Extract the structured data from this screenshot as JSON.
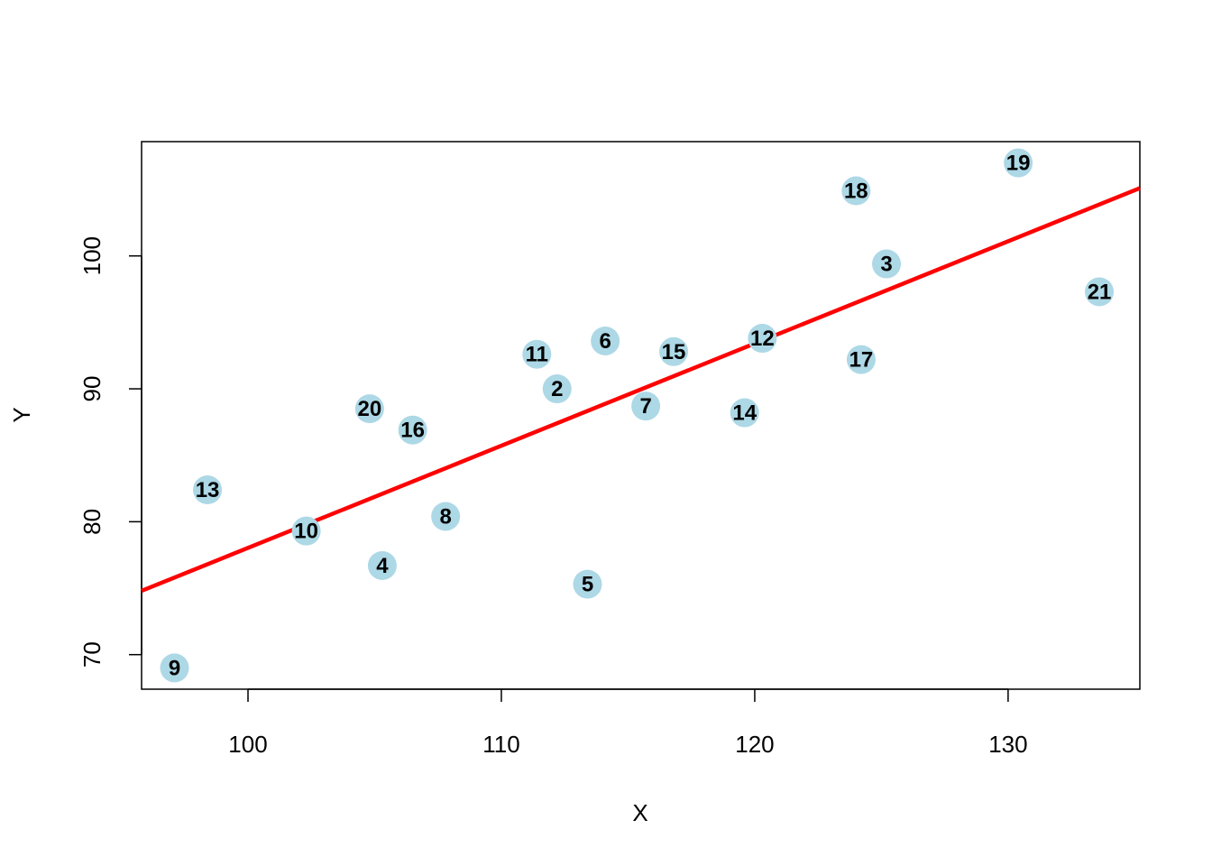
{
  "chart_data": {
    "type": "scatter",
    "title": "",
    "xlabel": "X",
    "ylabel": "Y",
    "xlim": [
      95.8,
      135.2
    ],
    "ylim": [
      67.4,
      108.6
    ],
    "x_ticks": [
      100,
      110,
      120,
      130
    ],
    "y_ticks": [
      70,
      80,
      90,
      100
    ],
    "grid": false,
    "legend": "none",
    "point_color": "#add8e6",
    "line_color": "#ff0000",
    "points": [
      {
        "label": "2",
        "x": 112.2,
        "y": 90.0
      },
      {
        "label": "3",
        "x": 125.2,
        "y": 99.4
      },
      {
        "label": "4",
        "x": 105.3,
        "y": 76.7
      },
      {
        "label": "5",
        "x": 113.4,
        "y": 75.3
      },
      {
        "label": "6",
        "x": 114.1,
        "y": 93.6
      },
      {
        "label": "7",
        "x": 115.7,
        "y": 88.7
      },
      {
        "label": "8",
        "x": 107.8,
        "y": 80.4
      },
      {
        "label": "9",
        "x": 97.1,
        "y": 69.0
      },
      {
        "label": "10",
        "x": 102.3,
        "y": 79.3
      },
      {
        "label": "11",
        "x": 111.4,
        "y": 92.6
      },
      {
        "label": "12",
        "x": 120.3,
        "y": 93.8
      },
      {
        "label": "13",
        "x": 98.4,
        "y": 82.4
      },
      {
        "label": "14",
        "x": 119.6,
        "y": 88.2
      },
      {
        "label": "15",
        "x": 116.8,
        "y": 92.8
      },
      {
        "label": "16",
        "x": 106.5,
        "y": 86.9
      },
      {
        "label": "17",
        "x": 124.2,
        "y": 92.2
      },
      {
        "label": "18",
        "x": 124.0,
        "y": 104.9
      },
      {
        "label": "19",
        "x": 130.4,
        "y": 107.0
      },
      {
        "label": "20",
        "x": 104.8,
        "y": 88.5
      },
      {
        "label": "21",
        "x": 133.6,
        "y": 97.3
      }
    ],
    "regression_line": {
      "x": [
        95.8,
        135.2
      ],
      "y": [
        74.8,
        105.1
      ]
    }
  }
}
